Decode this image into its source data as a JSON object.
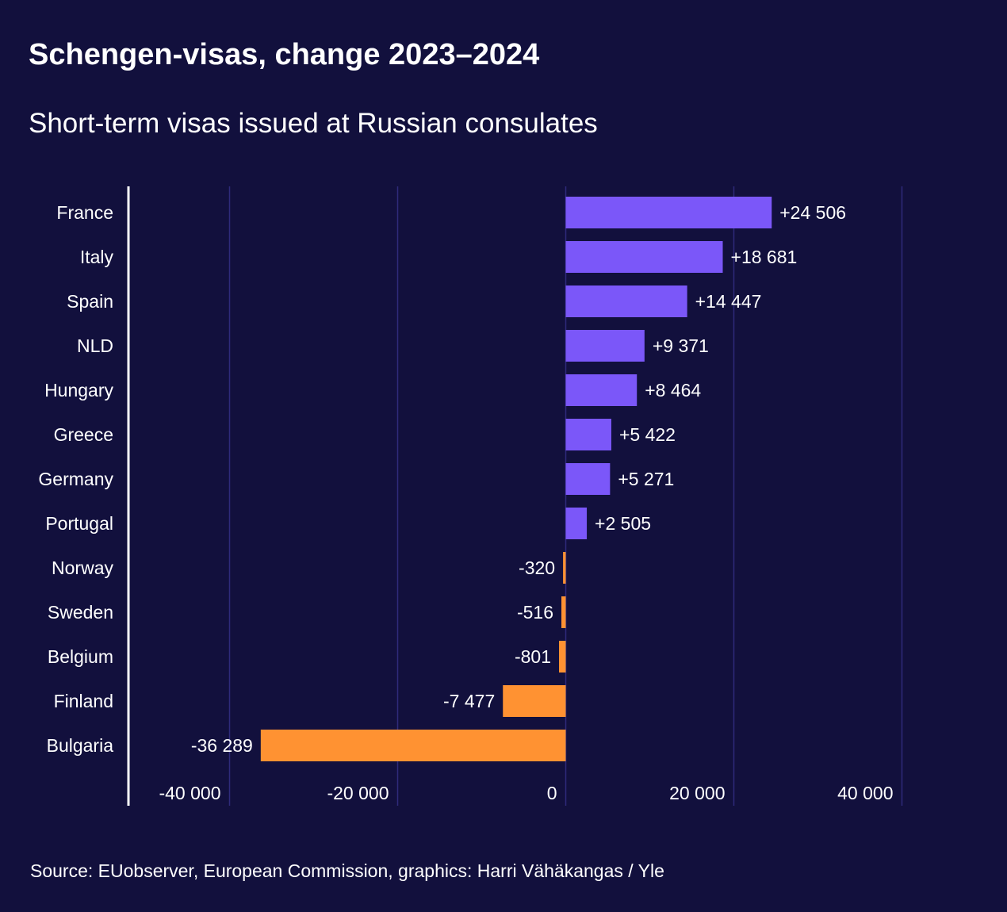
{
  "header": {
    "title": "Schengen-visas, change 2023–2024",
    "subtitle": "Short-term visas issued at Russian consulates"
  },
  "footer": {
    "source": "Source: EUobserver, European Commission, graphics: Harri Vähäkangas / Yle"
  },
  "colors": {
    "background": "#12103d",
    "positive": "#7b57f9",
    "negative": "#ff9232",
    "gridline": "#2e2a7a",
    "axis": "#ffffff",
    "text": "#ffffff"
  },
  "chart_data": {
    "type": "bar",
    "orientation": "horizontal",
    "title": "Schengen-visas, change 2023–2024",
    "subtitle": "Short-term visas issued at Russian consulates",
    "categories": [
      "France",
      "Italy",
      "Spain",
      "NLD",
      "Hungary",
      "Greece",
      "Germany",
      "Portugal",
      "Norway",
      "Sweden",
      "Belgium",
      "Finland",
      "Bulgaria"
    ],
    "values": [
      24506,
      18681,
      14447,
      9371,
      8464,
      5422,
      5271,
      2505,
      -320,
      -516,
      -801,
      -7477,
      -36289
    ],
    "data_labels": [
      "+24 506",
      "+18 681",
      "+14 447",
      "+9 371",
      "+8 464",
      "+5 422",
      "+5 271",
      "+2 505",
      "-320",
      "-516",
      "-801",
      "-7 477",
      "-36 289"
    ],
    "xlim": [
      -52000,
      40000
    ],
    "x_ticks": [
      -40000,
      -20000,
      0,
      20000,
      40000
    ],
    "x_tick_labels": [
      "-40 000",
      "-20 000",
      "0",
      "20 000",
      "40 000"
    ],
    "grid": true,
    "xlabel": "",
    "ylabel": ""
  }
}
